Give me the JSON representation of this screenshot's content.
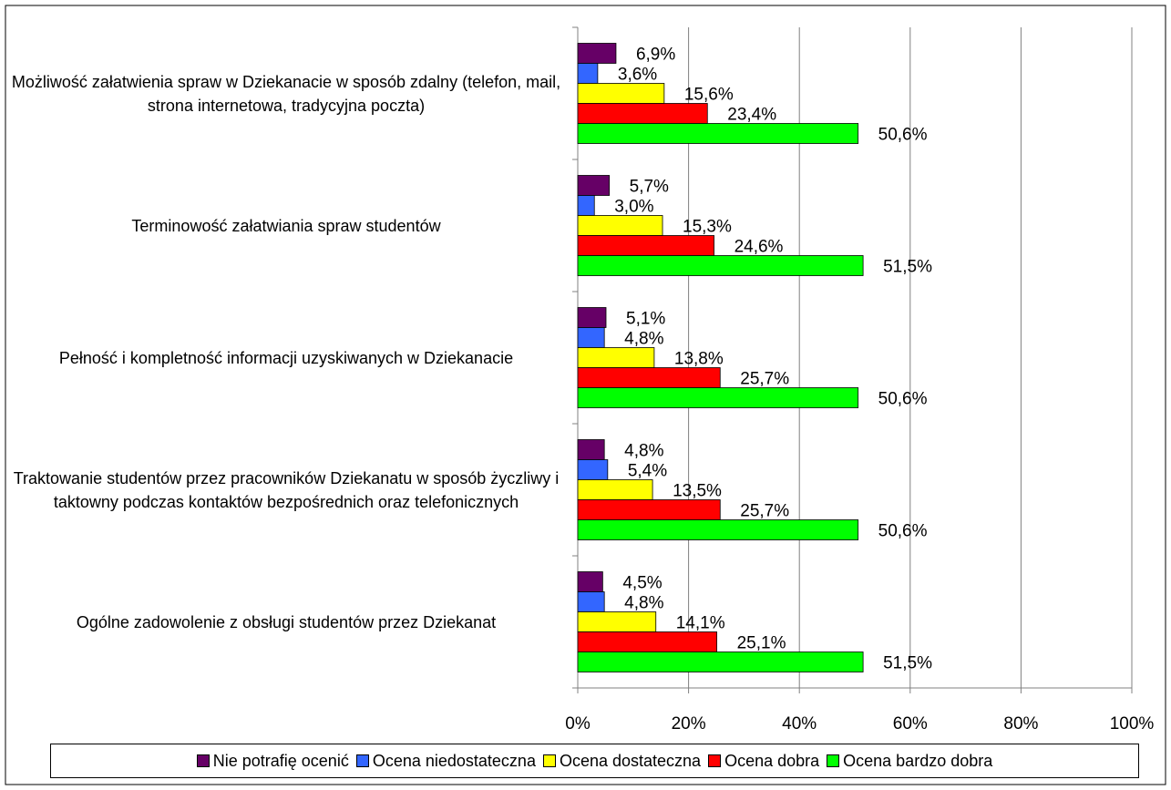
{
  "chart_data": {
    "type": "barh",
    "categories": [
      "Możliwość załatwienia spraw w Dziekanacie w sposób zdalny (telefon, mail, strona internetowa, tradycyjna poczta)",
      "Terminowość załatwiania spraw studentów",
      "Pełność i kompletność informacji uzyskiwanych w Dziekanacie",
      "Traktowanie studentów przez pracowników Dziekanatu w sposób życzliwy i taktowny podczas kontaktów bezpośrednich oraz telefonicznych",
      "Ogólne zadowolenie z obsługi studentów przez Dziekanat"
    ],
    "series": [
      {
        "name": "Nie potrafię ocenić",
        "color": "#660066",
        "values": [
          6.9,
          5.7,
          5.1,
          4.8,
          4.5
        ],
        "value_labels": [
          "6,9%",
          "5,7%",
          "5,1%",
          "4,8%",
          "4,5%"
        ]
      },
      {
        "name": "Ocena niedostateczna",
        "color": "#3366ff",
        "values": [
          3.6,
          3.0,
          4.8,
          5.4,
          4.8
        ],
        "value_labels": [
          "3,6%",
          "3,0%",
          "4,8%",
          "5,4%",
          "4,8%"
        ]
      },
      {
        "name": "Ocena dostateczna",
        "color": "#ffff00",
        "values": [
          15.6,
          15.3,
          13.8,
          13.5,
          14.1
        ],
        "value_labels": [
          "15,6%",
          "15,3%",
          "13,8%",
          "13,5%",
          "14,1%"
        ]
      },
      {
        "name": "Ocena dobra",
        "color": "#ff0000",
        "values": [
          23.4,
          24.6,
          25.7,
          25.7,
          25.1
        ],
        "value_labels": [
          "23,4%",
          "24,6%",
          "25,7%",
          "25,7%",
          "25,1%"
        ]
      },
      {
        "name": "Ocena bardzo dobra",
        "color": "#00ff00",
        "values": [
          50.6,
          51.5,
          50.6,
          50.6,
          51.5
        ],
        "value_labels": [
          "50,6%",
          "51,5%",
          "50,6%",
          "50,6%",
          "51,5%"
        ]
      }
    ],
    "xlim": [
      0,
      100
    ],
    "xticks": [
      {
        "value": 0,
        "label": "0%"
      },
      {
        "value": 20,
        "label": "20%"
      },
      {
        "value": 40,
        "label": "40%"
      },
      {
        "value": 60,
        "label": "60%"
      },
      {
        "value": 80,
        "label": "80%"
      },
      {
        "value": 100,
        "label": "100%"
      }
    ],
    "grid": true,
    "legend": "bottom"
  }
}
